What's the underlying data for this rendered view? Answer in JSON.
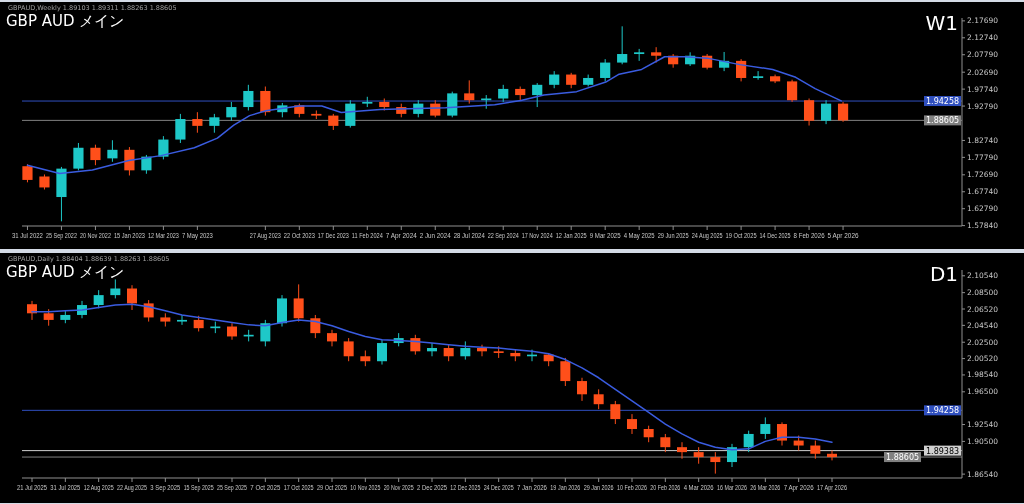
{
  "chart_data": [
    {
      "type": "candlestick",
      "title": "GBP AUD メイン",
      "subtitle": "GBPAUD,Weekly 1.89103 1.89311 1.88263 1.88605",
      "annotations": [
        "W1"
      ],
      "x": [
        "2022-07-31",
        "2022-08-28",
        "2022-09-25",
        "2022-10-23",
        "2022-11-20",
        "2022-12-18",
        "2023-01-15",
        "2023-02-12",
        "2023-03-12",
        "2023-04-09",
        "2023-05-07",
        "2023-06-04",
        "2023-07-02",
        "2023-07-30",
        "2023-08-27",
        "2023-09-24",
        "2023-10-22",
        "2023-11-19",
        "2023-12-17",
        "2024-01-14",
        "2024-02-11",
        "2024-03-10",
        "2024-04-07",
        "2024-05-05",
        "2024-06-02",
        "2024-06-30",
        "2024-07-28",
        "2024-08-25",
        "2024-09-22",
        "2024-10-20",
        "2024-11-17",
        "2024-12-15",
        "2025-01-12",
        "2025-02-09",
        "2025-03-09",
        "2025-04-06",
        "2025-05-04",
        "2025-06-01",
        "2025-06-29",
        "2025-07-27",
        "2025-08-24",
        "2025-09-21",
        "2025-10-19",
        "2025-11-16",
        "2025-12-14",
        "2026-01-11",
        "2026-02-08",
        "2026-03-08",
        "2026-04-05"
      ],
      "ohlc": [
        [
          1.752,
          1.758,
          1.705,
          1.712
        ],
        [
          1.722,
          1.728,
          1.684,
          1.69
        ],
        [
          1.662,
          1.75,
          1.591,
          1.745
        ],
        [
          1.745,
          1.82,
          1.74,
          1.806
        ],
        [
          1.806,
          1.815,
          1.755,
          1.77
        ],
        [
          1.775,
          1.828,
          1.765,
          1.8
        ],
        [
          1.8,
          1.808,
          1.725,
          1.74
        ],
        [
          1.74,
          1.785,
          1.73,
          1.78
        ],
        [
          1.78,
          1.84,
          1.772,
          1.83
        ],
        [
          1.83,
          1.905,
          1.82,
          1.89
        ],
        [
          1.89,
          1.91,
          1.85,
          1.87
        ],
        [
          1.87,
          1.905,
          1.85,
          1.895
        ],
        [
          1.895,
          1.94,
          1.885,
          1.925
        ],
        [
          1.925,
          1.99,
          1.915,
          1.972
        ],
        [
          1.972,
          1.985,
          1.9,
          1.91
        ],
        [
          1.91,
          1.937,
          1.895,
          1.93
        ],
        [
          1.93,
          1.935,
          1.895,
          1.905
        ],
        [
          1.905,
          1.915,
          1.89,
          1.9
        ],
        [
          1.9,
          1.905,
          1.858,
          1.87
        ],
        [
          1.87,
          1.945,
          1.865,
          1.935
        ],
        [
          1.935,
          1.955,
          1.925,
          1.94
        ],
        [
          1.94,
          1.95,
          1.915,
          1.925
        ],
        [
          1.925,
          1.935,
          1.895,
          1.905
        ],
        [
          1.905,
          1.945,
          1.895,
          1.935
        ],
        [
          1.935,
          1.945,
          1.895,
          1.9
        ],
        [
          1.9,
          1.97,
          1.895,
          1.965
        ],
        [
          1.965,
          2.003,
          1.935,
          1.945
        ],
        [
          1.945,
          1.96,
          1.92,
          1.95
        ],
        [
          1.95,
          1.99,
          1.94,
          1.978
        ],
        [
          1.978,
          1.985,
          1.945,
          1.96
        ],
        [
          1.96,
          1.995,
          1.925,
          1.99
        ],
        [
          1.99,
          2.03,
          1.98,
          2.02
        ],
        [
          2.02,
          2.025,
          1.98,
          1.99
        ],
        [
          1.99,
          2.02,
          1.985,
          2.01
        ],
        [
          2.01,
          2.065,
          2.0,
          2.055
        ],
        [
          2.055,
          2.161,
          2.05,
          2.08
        ],
        [
          2.08,
          2.095,
          2.06,
          2.085
        ],
        [
          2.085,
          2.1,
          2.055,
          2.075
        ],
        [
          2.075,
          2.08,
          2.04,
          2.05
        ],
        [
          2.05,
          2.085,
          2.045,
          2.075
        ],
        [
          2.075,
          2.08,
          2.035,
          2.04
        ],
        [
          2.04,
          2.086,
          2.03,
          2.06
        ],
        [
          2.06,
          2.065,
          2.0,
          2.01
        ],
        [
          2.01,
          2.03,
          2.005,
          2.015
        ],
        [
          2.015,
          2.02,
          1.995,
          2.0
        ],
        [
          2.0,
          2.005,
          1.94,
          1.945
        ],
        [
          1.945,
          1.95,
          1.871,
          1.885
        ],
        [
          1.885,
          1.945,
          1.875,
          1.935
        ],
        [
          1.935,
          1.94,
          1.882,
          1.886
        ]
      ],
      "colors": [
        "#ff4f1a",
        "#ff4f1a",
        "#1ec8c8",
        "#1ec8c8",
        "#ff4f1a",
        "#1ec8c8",
        "#ff4f1a",
        "#1ec8c8",
        "#1ec8c8",
        "#1ec8c8",
        "#ff4f1a",
        "#1ec8c8",
        "#1ec8c8",
        "#1ec8c8",
        "#ff4f1a",
        "#1ec8c8",
        "#ff4f1a",
        "#ff4f1a",
        "#ff4f1a",
        "#1ec8c8",
        "#1ec8c8",
        "#ff4f1a",
        "#ff4f1a",
        "#1ec8c8",
        "#ff4f1a",
        "#1ec8c8",
        "#ff4f1a",
        "#1ec8c8",
        "#1ec8c8",
        "#ff4f1a",
        "#1ec8c8",
        "#1ec8c8",
        "#ff4f1a",
        "#1ec8c8",
        "#1ec8c8",
        "#1ec8c8",
        "#1ec8c8",
        "#ff4f1a",
        "#ff4f1a",
        "#1ec8c8",
        "#ff4f1a",
        "#1ec8c8",
        "#ff4f1a",
        "#1ec8c8",
        "#ff4f1a",
        "#ff4f1a",
        "#ff4f1a",
        "#1ec8c8",
        "#ff4f1a"
      ],
      "series": [
        {
          "type": "line",
          "color": "#3a5ce0",
          "x": [
            "2022-07-31",
            "2022-09-22",
            "2022-11-15",
            "2023-01-14",
            "2023-03-08",
            "2023-05-02",
            "2023-06-09",
            "2023-07-06",
            "2023-08-01",
            "2023-08-28",
            "2023-10-21",
            "2023-11-28",
            "2023-12-30",
            "2024-03-03",
            "2024-06-19",
            "2024-09-08",
            "2024-10-21",
            "2024-11-28",
            "2025-01-21",
            "2025-03-10",
            "2025-04-01",
            "2025-05-08",
            "2025-06-15",
            "2025-07-18",
            "2025-08-24",
            "2025-10-17",
            "2025-12-10",
            "2026-01-17",
            "2026-02-18",
            "2026-04-02"
          ],
          "values": [
            1.755,
            1.731,
            1.741,
            1.769,
            1.783,
            1.806,
            1.834,
            1.872,
            1.9,
            1.914,
            1.928,
            1.928,
            1.909,
            1.918,
            1.923,
            1.932,
            1.944,
            1.96,
            1.97,
            1.998,
            2.021,
            2.035,
            2.072,
            2.072,
            2.068,
            2.049,
            2.035,
            2.012,
            1.979,
            1.943
          ]
        }
      ],
      "xlim": [
        "2022-07-22",
        "2026-10-18"
      ],
      "xticks": [
        {
          "value": "2022-07-31",
          "label": "31 Jul 2022"
        },
        {
          "value": "2022-09-25",
          "label": "25 Sep 2022"
        },
        {
          "value": "2022-11-20",
          "label": "20 Nov 2022"
        },
        {
          "value": "2023-01-15",
          "label": "15 Jan 2023"
        },
        {
          "value": "2023-03-12",
          "label": "12 Mar 2023"
        },
        {
          "value": "2023-05-07",
          "label": "7 May 2023"
        },
        {
          "value": "2023-08-27",
          "label": "27 Aug 2023"
        },
        {
          "value": "2023-10-22",
          "label": "22 Oct 2023"
        },
        {
          "value": "2023-12-17",
          "label": "17 Dec 2023"
        },
        {
          "value": "2024-02-11",
          "label": "11 Feb 2024"
        },
        {
          "value": "2024-04-07",
          "label": "7 Apr 2024"
        },
        {
          "value": "2024-06-02",
          "label": "2 Jun 2024"
        },
        {
          "value": "2024-07-28",
          "label": "28 Jul 2024"
        },
        {
          "value": "2024-09-22",
          "label": "22 Sep 2024"
        },
        {
          "value": "2024-11-17",
          "label": "17 Nov 2024"
        },
        {
          "value": "2025-01-12",
          "label": "12 Jan 2025"
        },
        {
          "value": "2025-03-09",
          "label": "9 Mar 2025"
        },
        {
          "value": "2025-05-04",
          "label": "4 May 2025"
        },
        {
          "value": "2025-06-29",
          "label": "29 Jun 2025"
        },
        {
          "value": "2025-08-24",
          "label": "24 Aug 2025"
        },
        {
          "value": "2025-10-19",
          "label": "19 Oct 2025"
        },
        {
          "value": "2025-12-14",
          "label": "14 Dec 2025"
        },
        {
          "value": "2026-02-08",
          "label": "8 Feb 2026"
        },
        {
          "value": "2026-04-05",
          "label": "5 Apr 2026"
        }
      ],
      "ylim": [
        1.5773,
        2.1853
      ],
      "yticks": [
        {
          "value": 2.1769,
          "label": "2.17690"
        },
        {
          "value": 2.1274,
          "label": "2.12740"
        },
        {
          "value": 2.0779,
          "label": "2.07790"
        },
        {
          "value": 2.0269,
          "label": "2.02690"
        },
        {
          "value": 1.9774,
          "label": "1.97740"
        },
        {
          "value": 1.9279,
          "label": "1.92790"
        },
        {
          "value": 1.8274,
          "label": "1.82740"
        },
        {
          "value": 1.7779,
          "label": "1.77790"
        },
        {
          "value": 1.7269,
          "label": "1.72690"
        },
        {
          "value": 1.6774,
          "label": "1.67740"
        },
        {
          "value": 1.6279,
          "label": "1.62790"
        },
        {
          "value": 1.5784,
          "label": "1.57840"
        }
      ],
      "ref_lines": [
        {
          "axis": "y",
          "value": 1.94258,
          "label": "1.94258",
          "color": "#2f4fbf"
        },
        {
          "axis": "y",
          "value": 1.88605,
          "label": "1.88605",
          "color": "#808080"
        }
      ]
    },
    {
      "type": "candlestick",
      "title": "GBP AUD メイン",
      "subtitle": "GBPAUD,Daily 1.88404 1.88639 1.88263 1.88605",
      "annotations": [
        "D1"
      ],
      "categories": [
        "21 Jul 2025",
        null,
        "31 Jul 2025",
        null,
        "12 Aug 2025",
        null,
        "22 Aug 2025",
        null,
        "3 Sep 2025",
        null,
        "15 Sep 2025",
        null,
        "25 Sep 2025",
        null,
        "7 Oct 2025",
        null,
        "17 Oct 2025",
        null,
        "29 Oct 2025",
        null,
        "10 Nov 2025",
        null,
        "20 Nov 2025",
        null,
        "2 Dec 2025",
        null,
        "12 Dec 2025",
        null,
        "24 Dec 2025",
        null,
        "7 Jan 2026",
        null,
        "19 Jan 2026",
        null,
        "29 Jan 2026",
        null,
        "10 Feb 2026",
        null,
        "20 Feb 2026",
        null,
        "4 Mar 2026",
        null,
        "16 Mar 2026",
        null,
        "26 Mar 2026",
        null,
        "7 Apr 2026",
        null,
        "17 Apr 2026"
      ],
      "ohlc": [
        [
          2.071,
          2.075,
          2.052,
          2.06
        ],
        [
          2.06,
          2.065,
          2.045,
          2.052
        ],
        [
          2.052,
          2.064,
          2.048,
          2.058
        ],
        [
          2.058,
          2.075,
          2.054,
          2.07
        ],
        [
          2.07,
          2.088,
          2.066,
          2.082
        ],
        [
          2.082,
          2.101,
          2.078,
          2.09
        ],
        [
          2.09,
          2.094,
          2.064,
          2.072
        ],
        [
          2.072,
          2.076,
          2.05,
          2.055
        ],
        [
          2.055,
          2.06,
          2.044,
          2.05
        ],
        [
          2.05,
          2.058,
          2.046,
          2.052
        ],
        [
          2.052,
          2.057,
          2.038,
          2.042
        ],
        [
          2.042,
          2.05,
          2.036,
          2.044
        ],
        [
          2.044,
          2.048,
          2.028,
          2.032
        ],
        [
          2.032,
          2.04,
          2.026,
          2.034
        ],
        [
          2.026,
          2.052,
          2.02,
          2.048
        ],
        [
          2.048,
          2.082,
          2.044,
          2.078
        ],
        [
          2.078,
          2.095,
          2.05,
          2.054
        ],
        [
          2.054,
          2.058,
          2.03,
          2.036
        ],
        [
          2.036,
          2.04,
          2.02,
          2.026
        ],
        [
          2.026,
          2.03,
          2.002,
          2.008
        ],
        [
          2.008,
          2.015,
          1.996,
          2.002
        ],
        [
          2.002,
          2.028,
          1.998,
          2.024
        ],
        [
          2.024,
          2.036,
          2.02,
          2.03
        ],
        [
          2.03,
          2.034,
          2.01,
          2.014
        ],
        [
          2.014,
          2.024,
          2.008,
          2.018
        ],
        [
          2.018,
          2.022,
          2.002,
          2.008
        ],
        [
          2.008,
          2.026,
          2.004,
          2.018
        ],
        [
          2.018,
          2.022,
          2.008,
          2.014
        ],
        [
          2.014,
          2.02,
          2.006,
          2.012
        ],
        [
          2.012,
          2.016,
          2.002,
          2.008
        ],
        [
          2.008,
          2.016,
          2.002,
          2.01
        ],
        [
          2.01,
          2.012,
          1.996,
          2.002
        ],
        [
          2.002,
          2.006,
          1.972,
          1.978
        ],
        [
          1.978,
          1.982,
          1.954,
          1.962
        ],
        [
          1.962,
          1.968,
          1.944,
          1.95
        ],
        [
          1.95,
          1.954,
          1.926,
          1.932
        ],
        [
          1.932,
          1.938,
          1.914,
          1.92
        ],
        [
          1.92,
          1.924,
          1.904,
          1.91
        ],
        [
          1.91,
          1.914,
          1.892,
          1.898
        ],
        [
          1.898,
          1.904,
          1.884,
          1.892
        ],
        [
          1.892,
          1.898,
          1.878,
          1.886
        ],
        [
          1.886,
          1.892,
          1.866,
          1.88
        ],
        [
          1.88,
          1.902,
          1.874,
          1.898
        ],
        [
          1.898,
          1.918,
          1.892,
          1.914
        ],
        [
          1.914,
          1.934,
          1.908,
          1.926
        ],
        [
          1.926,
          1.928,
          1.9,
          1.906
        ],
        [
          1.906,
          1.912,
          1.894,
          1.9
        ],
        [
          1.9,
          1.906,
          1.884,
          1.89
        ],
        [
          1.89,
          1.894,
          1.882,
          1.886
        ]
      ],
      "colors": [
        "#ff4f1a",
        "#ff4f1a",
        "#1ec8c8",
        "#1ec8c8",
        "#1ec8c8",
        "#1ec8c8",
        "#ff4f1a",
        "#ff4f1a",
        "#ff4f1a",
        "#1ec8c8",
        "#ff4f1a",
        "#1ec8c8",
        "#ff4f1a",
        "#1ec8c8",
        "#1ec8c8",
        "#1ec8c8",
        "#ff4f1a",
        "#ff4f1a",
        "#ff4f1a",
        "#ff4f1a",
        "#ff4f1a",
        "#1ec8c8",
        "#1ec8c8",
        "#ff4f1a",
        "#1ec8c8",
        "#ff4f1a",
        "#1ec8c8",
        "#ff4f1a",
        "#ff4f1a",
        "#ff4f1a",
        "#1ec8c8",
        "#ff4f1a",
        "#ff4f1a",
        "#ff4f1a",
        "#ff4f1a",
        "#ff4f1a",
        "#ff4f1a",
        "#ff4f1a",
        "#ff4f1a",
        "#ff4f1a",
        "#ff4f1a",
        "#ff4f1a",
        "#1ec8c8",
        "#1ec8c8",
        "#1ec8c8",
        "#ff4f1a",
        "#ff4f1a",
        "#ff4f1a",
        "#ff4f1a"
      ],
      "series": [
        {
          "type": "line",
          "color": "#3a5ce0",
          "values": [
            2.062,
            2.062,
            2.063,
            2.064,
            2.067,
            2.07,
            2.071,
            2.068,
            2.063,
            2.058,
            2.055,
            2.052,
            2.049,
            2.046,
            2.045,
            2.049,
            2.052,
            2.05,
            2.045,
            2.038,
            2.032,
            2.028,
            2.027,
            2.026,
            2.024,
            2.022,
            2.02,
            2.019,
            2.018,
            2.016,
            2.014,
            2.011,
            2.004,
            1.994,
            1.982,
            1.968,
            1.954,
            1.94,
            1.926,
            1.914,
            1.904,
            1.898,
            1.895,
            1.896,
            1.905,
            1.91,
            1.91,
            1.908,
            1.904
          ]
        }
      ],
      "ylim": [
        1.8607,
        2.1124
      ],
      "yticks": [
        {
          "value": 2.1054,
          "label": "2.10540"
        },
        {
          "value": 2.085,
          "label": "2.08500"
        },
        {
          "value": 2.0652,
          "label": "2.06520"
        },
        {
          "value": 2.0454,
          "label": "2.04540"
        },
        {
          "value": 2.025,
          "label": "2.02500"
        },
        {
          "value": 2.0052,
          "label": "2.00520"
        },
        {
          "value": 1.9854,
          "label": "1.98540"
        },
        {
          "value": 1.965,
          "label": "1.96500"
        },
        {
          "value": 1.9254,
          "label": "1.92540"
        },
        {
          "value": 1.905,
          "label": "1.90500"
        },
        {
          "value": 1.8654,
          "label": "1.86540"
        }
      ],
      "ref_lines": [
        {
          "axis": "y",
          "value": 1.94258,
          "label": "1.94258",
          "color": "#2f4fbf"
        },
        {
          "axis": "y",
          "value": 1.89383,
          "label": "1.89383",
          "color": "#d0d0d0"
        },
        {
          "axis": "y",
          "value": 1.88605,
          "label": "1.88605",
          "color": "#808080"
        }
      ]
    }
  ]
}
